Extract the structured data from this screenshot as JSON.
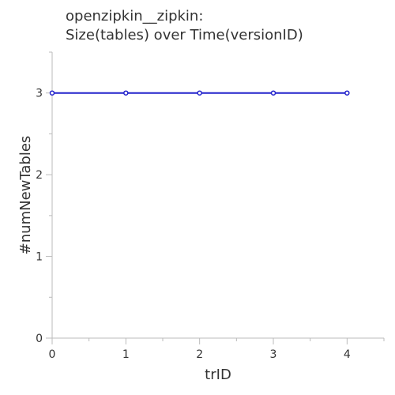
{
  "chart_data": {
    "type": "line",
    "title_lines": [
      "openzipkin__zipkin:",
      "Size(tables) over Time(versionID)"
    ],
    "xlabel": "trID",
    "ylabel": "#numNewTables",
    "x": [
      0,
      1,
      2,
      3,
      4
    ],
    "series": [
      {
        "values": [
          3,
          3,
          3,
          3,
          3
        ],
        "color": "#2222cc"
      }
    ],
    "xlim": [
      0,
      4.5
    ],
    "ylim": [
      0,
      3.5
    ],
    "x_ticks": [
      0,
      1,
      2,
      3,
      4
    ],
    "x_tick_labels": [
      "0",
      "1",
      "2",
      "3",
      "4"
    ],
    "x_minor_ticks": [
      0.5,
      1.5,
      2.5,
      3.5,
      4.5
    ],
    "y_ticks": [
      0,
      1,
      2,
      3
    ],
    "y_tick_labels": [
      "0",
      "1",
      "2",
      "3"
    ],
    "y_minor_ticks": [
      0.5,
      1.5,
      2.5,
      3.5
    ],
    "grid": false,
    "legend": "none"
  }
}
